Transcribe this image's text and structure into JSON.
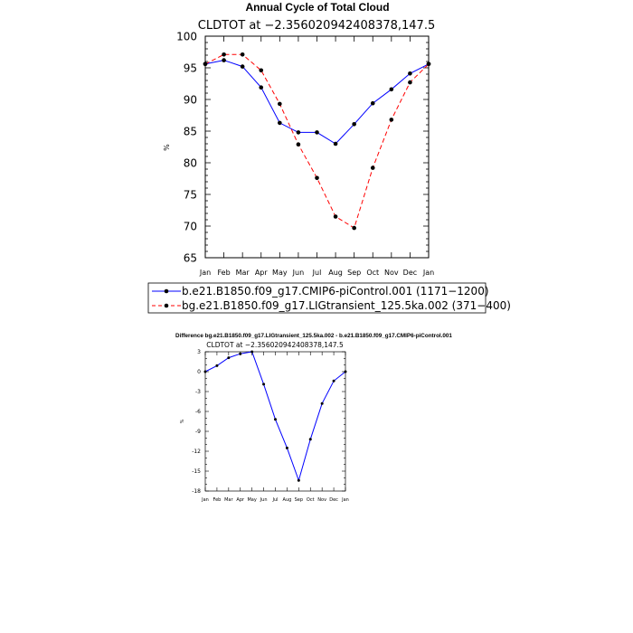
{
  "chart_data": [
    {
      "type": "line",
      "title": "Annual Cycle of Total Cloud",
      "subtitle": "CLDTOT at −2.356020942408378,147.5",
      "xlabel": "",
      "ylabel": "%",
      "categories": [
        "Jan",
        "Feb",
        "Mar",
        "Apr",
        "May",
        "Jun",
        "Jul",
        "Aug",
        "Sep",
        "Oct",
        "Nov",
        "Dec",
        "Jan"
      ],
      "ylim": [
        65,
        100
      ],
      "yticks": [
        65,
        70,
        75,
        80,
        85,
        90,
        95,
        100
      ],
      "grid": false,
      "legend_position": "bottom",
      "series": [
        {
          "name": "b.e21.B1850.f09_g17.CMIP6-piControl.001 (1171−1200)",
          "color": "#0000ff",
          "dash": "solid",
          "values": [
            95.6,
            96.2,
            95.2,
            91.9,
            86.3,
            84.8,
            84.8,
            83.0,
            86.1,
            89.4,
            91.6,
            94.1,
            95.6
          ]
        },
        {
          "name": "bg.e21.B1850.f09_g17.LIGtransient_125.5ka.002 (371−400)",
          "color": "#ff0000",
          "dash": "dashed",
          "values": [
            95.6,
            97.1,
            97.1,
            94.6,
            89.3,
            82.9,
            77.6,
            71.5,
            69.7,
            79.2,
            86.8,
            92.7,
            95.6
          ]
        }
      ]
    },
    {
      "type": "line",
      "title": "Difference bg.e21.B1850.f09_g17.LIGtransient_125.5ka.002 - b.e21.B1850.f09_g17.CMIP6-piControl.001",
      "subtitle": "CLDTOT at −2.356020942408378,147.5",
      "xlabel": "",
      "ylabel": "%",
      "categories": [
        "Jan",
        "Feb",
        "Mar",
        "Apr",
        "May",
        "Jun",
        "Jul",
        "Aug",
        "Sep",
        "Oct",
        "Nov",
        "Dec",
        "Jan"
      ],
      "ylim": [
        -18,
        3
      ],
      "yticks": [
        -18,
        -15,
        -12,
        -9,
        -6,
        -3,
        0,
        3
      ],
      "grid": false,
      "series": [
        {
          "name": "difference",
          "color": "#0000ff",
          "dash": "solid",
          "values": [
            0.0,
            0.9,
            2.1,
            2.7,
            3.0,
            -1.9,
            -7.2,
            -11.5,
            -16.4,
            -10.2,
            -4.8,
            -1.4,
            0.0
          ]
        }
      ]
    }
  ]
}
